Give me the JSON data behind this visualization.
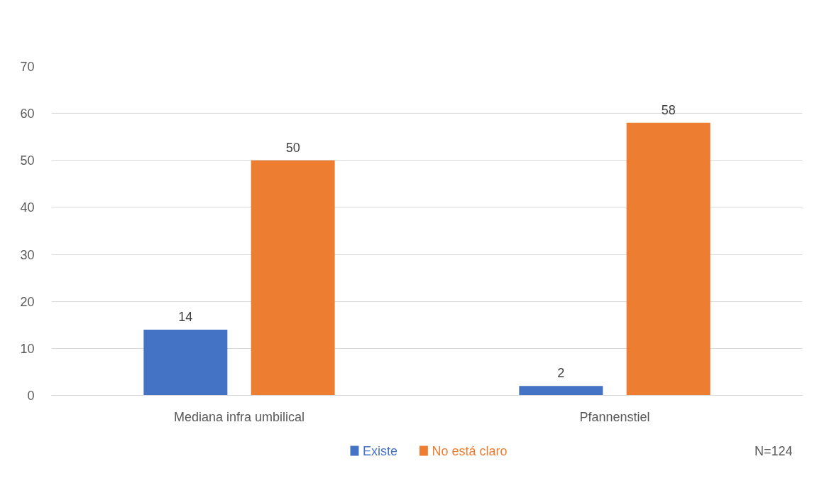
{
  "chart_data": {
    "type": "bar",
    "categories": [
      "Mediana infra umbilical",
      "Pfannenstiel"
    ],
    "series": [
      {
        "name": "Existe",
        "color": "#4472c4",
        "values": [
          14,
          2
        ]
      },
      {
        "name": "No está claro",
        "color": "#ed7d31",
        "values": [
          50,
          58
        ]
      }
    ],
    "ylim": [
      0,
      70
    ],
    "yticks": [
      0,
      10,
      20,
      30,
      40,
      50,
      60,
      70
    ],
    "grid": "y",
    "legend": "bottom",
    "data_labels": true,
    "annotations": [
      "N=124"
    ]
  }
}
